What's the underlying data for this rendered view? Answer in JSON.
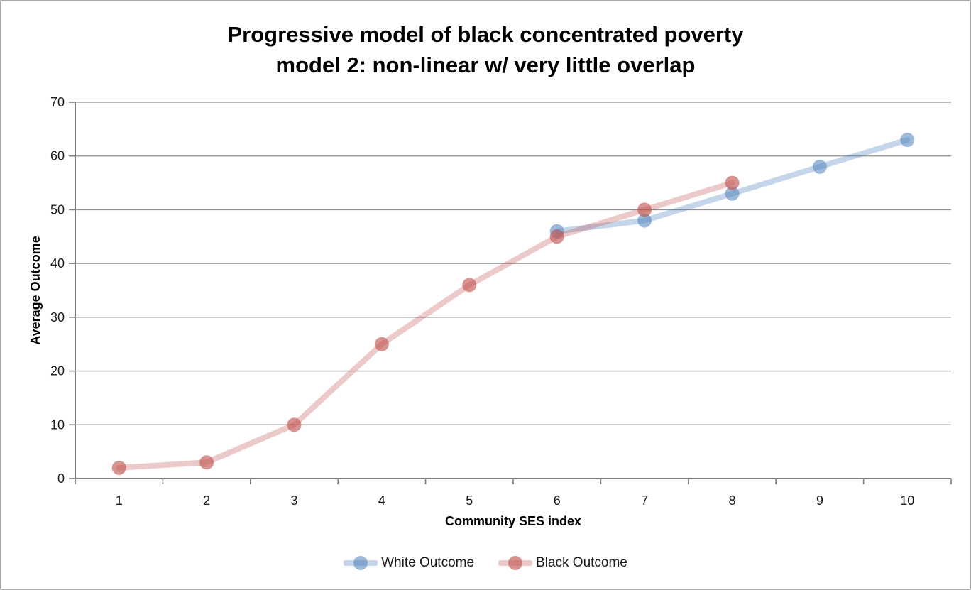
{
  "window": {
    "background": "#ffffff",
    "border_color": "#a9a9a9"
  },
  "title": {
    "line1": "Progressive model of black concentrated poverty",
    "line2": "model 2: non-linear w/ very little overlap"
  },
  "chart_data": {
    "type": "line",
    "title": "Progressive model of black concentrated poverty model 2: non-linear w/ very little overlap",
    "xlabel": "Community SES index",
    "ylabel": "Average Outcome",
    "x": [
      1,
      2,
      3,
      4,
      5,
      6,
      7,
      8,
      9,
      10
    ],
    "xtick_labels": [
      "1",
      "2",
      "3",
      "4",
      "5",
      "6",
      "7",
      "8",
      "9",
      "10"
    ],
    "ylim": [
      0,
      70
    ],
    "ytick_step": 10,
    "ytick_labels": [
      "0",
      "10",
      "20",
      "30",
      "40",
      "50",
      "60",
      "70"
    ],
    "grid": true,
    "legend_position": "bottom-center",
    "series": [
      {
        "name": "White Outcome",
        "values": [
          null,
          null,
          null,
          null,
          null,
          46,
          48,
          53,
          58,
          63
        ],
        "base_color": "#4f81bd",
        "line_color": "rgba(79,129,189,0.32)",
        "marker_color": "rgba(79,129,189,0.55)"
      },
      {
        "name": "Black Outcome",
        "values": [
          2,
          3,
          10,
          25,
          36,
          45,
          50,
          55,
          null,
          null
        ],
        "base_color": "#c0504d",
        "line_color": "rgba(192,80,77,0.30)",
        "marker_color": "rgba(192,80,77,0.62)"
      }
    ],
    "colors": {
      "gridline": "#8f8f8f",
      "axis": "#7d7d7d",
      "tick_text": "#1a1a1a",
      "axis_title_text": "#000000"
    }
  }
}
